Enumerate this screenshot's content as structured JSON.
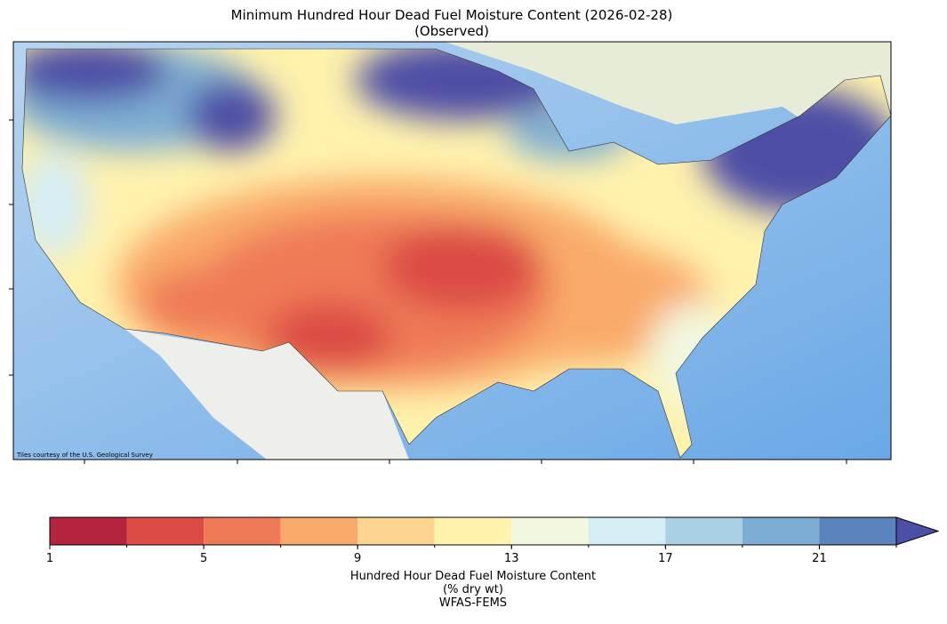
{
  "title": "Minimum Hundred Hour Dead Fuel Moisture Content (2026-02-28)",
  "subtitle": "(Observed)",
  "attribution": "Tiles courtesy of the U.S. Geological Survey",
  "colorbar": {
    "bounds": [
      1,
      3,
      5,
      7,
      9,
      11,
      13,
      15,
      17,
      19,
      21,
      23
    ],
    "colors": [
      "#b5243f",
      "#dc4b45",
      "#ef7a57",
      "#f9aa6a",
      "#fdd590",
      "#fff2ad",
      "#f1f8df",
      "#d4ecf4",
      "#a9d0e4",
      "#7eadd3",
      "#5b83bd"
    ],
    "extend": "max",
    "extend_color": "#4d4ea5",
    "ticks": [
      1,
      5,
      9,
      13,
      17,
      21
    ],
    "label_lines": [
      "Hundred Hour Dead Fuel Moisture Content",
      "(% dry wt)",
      "WFAS-FEMS"
    ]
  }
}
